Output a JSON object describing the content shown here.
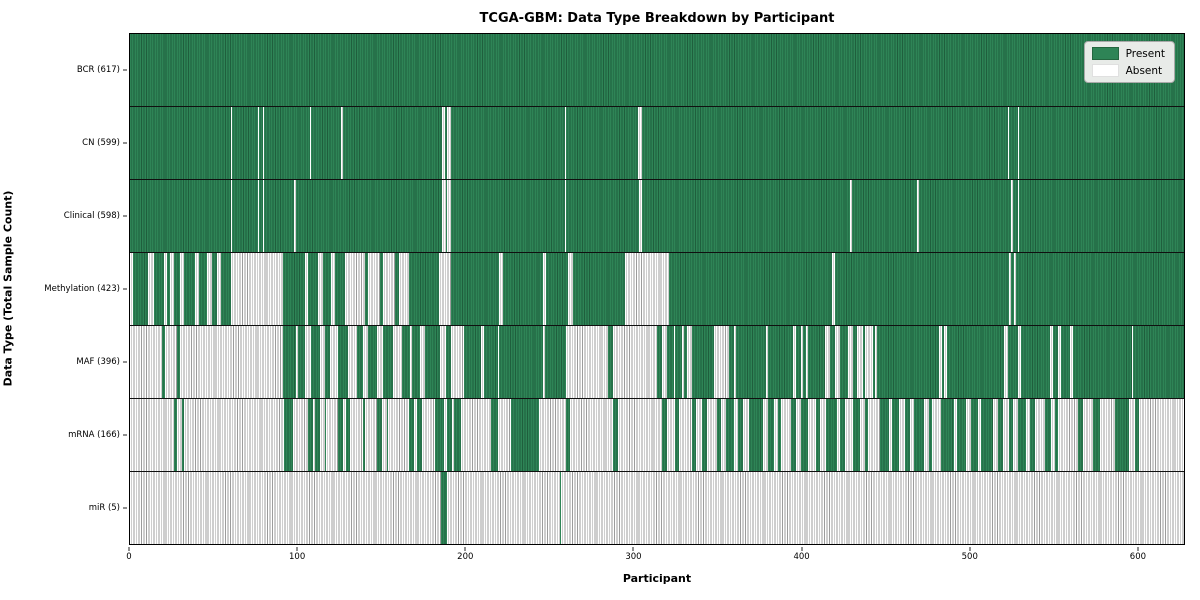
{
  "chart": {
    "title": "TCGA-GBM: Data Type Breakdown by Participant",
    "xlabel": "Participant",
    "ylabel": "Data Type (Total Sample Count)",
    "legend": [
      "Present",
      "Absent"
    ]
  },
  "chart_data": {
    "type": "heatmap",
    "title": "TCGA-GBM: Data Type Breakdown by Participant",
    "xlabel": "Participant",
    "ylabel": "Data Type (Total Sample Count)",
    "legend": [
      {
        "label": "Present",
        "color": "#2e8456"
      },
      {
        "label": "Absent",
        "color": "#ffffff"
      }
    ],
    "x_range": [
      0,
      628
    ],
    "x_ticks": [
      0,
      100,
      200,
      300,
      400,
      500,
      600
    ],
    "grid": false,
    "legend_position": "upper right",
    "value_encoding": "runs are run-length pairs [state,count] per participant column; 1=present, 0=absent",
    "rows": [
      {
        "label": "BCR (617)",
        "name": "BCR",
        "total": 617,
        "runs": [
          [
            1,
            628
          ]
        ]
      },
      {
        "label": "CN (599)",
        "name": "CN",
        "total": 599,
        "runs": [
          [
            1,
            60
          ],
          [
            0,
            1
          ],
          [
            1,
            15
          ],
          [
            0,
            1
          ],
          [
            1,
            2
          ],
          [
            0,
            1
          ],
          [
            1,
            27
          ],
          [
            0,
            1
          ],
          [
            1,
            18
          ],
          [
            0,
            1
          ],
          [
            1,
            59
          ],
          [
            0,
            2
          ],
          [
            1,
            1
          ],
          [
            0,
            2
          ],
          [
            1,
            68
          ],
          [
            0,
            1
          ],
          [
            1,
            43
          ],
          [
            0,
            2
          ],
          [
            1,
            218
          ],
          [
            0,
            1
          ],
          [
            1,
            5
          ],
          [
            0,
            1
          ],
          [
            1,
            98
          ]
        ]
      },
      {
        "label": "Clinical (598)",
        "name": "Clinical",
        "total": 598,
        "runs": [
          [
            1,
            60
          ],
          [
            0,
            1
          ],
          [
            1,
            15
          ],
          [
            0,
            1
          ],
          [
            1,
            2
          ],
          [
            0,
            1
          ],
          [
            1,
            18
          ],
          [
            0,
            1
          ],
          [
            1,
            87
          ],
          [
            0,
            2
          ],
          [
            1,
            1
          ],
          [
            0,
            2
          ],
          [
            1,
            68
          ],
          [
            0,
            1
          ],
          [
            1,
            43
          ],
          [
            0,
            2
          ],
          [
            1,
            124
          ],
          [
            0,
            1
          ],
          [
            1,
            39
          ],
          [
            0,
            1
          ],
          [
            1,
            55
          ],
          [
            0,
            1
          ],
          [
            1,
            3
          ],
          [
            0,
            1
          ],
          [
            1,
            98
          ]
        ]
      },
      {
        "label": "Methylation (423)",
        "name": "Methylation",
        "total": 423,
        "runs": [
          [
            0,
            2
          ],
          [
            1,
            9
          ],
          [
            0,
            3
          ],
          [
            1,
            6
          ],
          [
            0,
            2
          ],
          [
            1,
            2
          ],
          [
            0,
            2
          ],
          [
            1,
            4
          ],
          [
            0,
            2
          ],
          [
            1,
            7
          ],
          [
            0,
            2
          ],
          [
            1,
            5
          ],
          [
            0,
            3
          ],
          [
            1,
            3
          ],
          [
            0,
            2
          ],
          [
            1,
            6
          ],
          [
            0,
            31
          ],
          [
            1,
            13
          ],
          [
            0,
            2
          ],
          [
            1,
            6
          ],
          [
            0,
            3
          ],
          [
            1,
            5
          ],
          [
            0,
            2
          ],
          [
            1,
            6
          ],
          [
            0,
            12
          ],
          [
            1,
            2
          ],
          [
            0,
            7
          ],
          [
            1,
            2
          ],
          [
            0,
            7
          ],
          [
            1,
            2
          ],
          [
            0,
            6
          ],
          [
            1,
            18
          ],
          [
            0,
            7
          ],
          [
            1,
            29
          ],
          [
            0,
            2
          ],
          [
            1,
            24
          ],
          [
            0,
            2
          ],
          [
            1,
            13
          ],
          [
            0,
            3
          ],
          [
            1,
            31
          ],
          [
            0,
            26
          ],
          [
            1,
            97
          ],
          [
            0,
            2
          ],
          [
            1,
            104
          ],
          [
            0,
            1
          ],
          [
            1,
            2
          ],
          [
            0,
            1
          ],
          [
            1,
            100
          ]
        ]
      },
      {
        "label": "MAF (396)",
        "name": "MAF",
        "total": 396,
        "runs": [
          [
            0,
            19
          ],
          [
            1,
            2
          ],
          [
            0,
            7
          ],
          [
            1,
            2
          ],
          [
            0,
            61
          ],
          [
            1,
            8
          ],
          [
            0,
            1
          ],
          [
            1,
            4
          ],
          [
            0,
            4
          ],
          [
            1,
            5
          ],
          [
            0,
            3
          ],
          [
            1,
            3
          ],
          [
            0,
            5
          ],
          [
            1,
            6
          ],
          [
            0,
            5
          ],
          [
            1,
            4
          ],
          [
            0,
            3
          ],
          [
            1,
            5
          ],
          [
            0,
            4
          ],
          [
            1,
            6
          ],
          [
            0,
            5
          ],
          [
            1,
            5
          ],
          [
            0,
            1
          ],
          [
            1,
            5
          ],
          [
            0,
            3
          ],
          [
            1,
            9
          ],
          [
            0,
            3
          ],
          [
            1,
            3
          ],
          [
            0,
            8
          ],
          [
            1,
            10
          ],
          [
            0,
            2
          ],
          [
            1,
            8
          ],
          [
            0,
            1
          ],
          [
            1,
            26
          ],
          [
            0,
            1
          ],
          [
            1,
            13
          ],
          [
            0,
            25
          ],
          [
            1,
            3
          ],
          [
            0,
            26
          ],
          [
            1,
            3
          ],
          [
            0,
            3
          ],
          [
            1,
            4
          ],
          [
            0,
            1
          ],
          [
            1,
            4
          ],
          [
            0,
            1
          ],
          [
            1,
            2
          ],
          [
            0,
            3
          ],
          [
            1,
            13
          ],
          [
            0,
            9
          ],
          [
            1,
            3
          ],
          [
            0,
            1
          ],
          [
            1,
            18
          ],
          [
            0,
            1
          ],
          [
            1,
            15
          ],
          [
            0,
            2
          ],
          [
            1,
            3
          ],
          [
            0,
            1
          ],
          [
            1,
            2
          ],
          [
            0,
            1
          ],
          [
            1,
            10
          ],
          [
            0,
            3
          ],
          [
            1,
            3
          ],
          [
            0,
            3
          ],
          [
            1,
            5
          ],
          [
            0,
            3
          ],
          [
            1,
            2
          ],
          [
            0,
            4
          ],
          [
            1,
            1
          ],
          [
            0,
            5
          ],
          [
            1,
            1
          ],
          [
            0,
            1
          ],
          [
            1,
            37
          ],
          [
            0,
            2
          ],
          [
            1,
            1
          ],
          [
            0,
            2
          ],
          [
            1,
            34
          ],
          [
            0,
            2
          ],
          [
            1,
            6
          ],
          [
            0,
            2
          ],
          [
            1,
            17
          ],
          [
            0,
            2
          ],
          [
            1,
            3
          ],
          [
            0,
            2
          ],
          [
            1,
            5
          ],
          [
            0,
            2
          ],
          [
            1,
            35
          ],
          [
            0,
            1
          ],
          [
            1,
            30
          ]
        ]
      },
      {
        "label": "mRNA (166)",
        "name": "mRNA",
        "total": 166,
        "runs": [
          [
            0,
            26
          ],
          [
            1,
            2
          ],
          [
            0,
            3
          ],
          [
            1,
            1
          ],
          [
            0,
            60
          ],
          [
            1,
            5
          ],
          [
            0,
            9
          ],
          [
            1,
            3
          ],
          [
            0,
            1
          ],
          [
            1,
            3
          ],
          [
            0,
            3
          ],
          [
            1,
            1
          ],
          [
            0,
            7
          ],
          [
            1,
            3
          ],
          [
            0,
            2
          ],
          [
            1,
            2
          ],
          [
            0,
            8
          ],
          [
            1,
            1
          ],
          [
            0,
            7
          ],
          [
            1,
            3
          ],
          [
            0,
            3
          ],
          [
            1,
            1
          ],
          [
            0,
            12
          ],
          [
            1,
            3
          ],
          [
            0,
            2
          ],
          [
            1,
            3
          ],
          [
            0,
            8
          ],
          [
            1,
            5
          ],
          [
            0,
            2
          ],
          [
            1,
            3
          ],
          [
            0,
            1
          ],
          [
            1,
            4
          ],
          [
            0,
            18
          ],
          [
            1,
            4
          ],
          [
            0,
            8
          ],
          [
            1,
            17
          ],
          [
            0,
            16
          ],
          [
            1,
            2
          ],
          [
            0,
            26
          ],
          [
            1,
            3
          ],
          [
            0,
            26
          ],
          [
            1,
            3
          ],
          [
            0,
            5
          ],
          [
            1,
            2
          ],
          [
            0,
            8
          ],
          [
            1,
            2
          ],
          [
            0,
            4
          ],
          [
            1,
            3
          ],
          [
            0,
            6
          ],
          [
            1,
            2
          ],
          [
            0,
            3
          ],
          [
            1,
            5
          ],
          [
            0,
            2
          ],
          [
            1,
            3
          ],
          [
            0,
            4
          ],
          [
            1,
            8
          ],
          [
            0,
            3
          ],
          [
            1,
            4
          ],
          [
            0,
            2
          ],
          [
            1,
            2
          ],
          [
            0,
            6
          ],
          [
            1,
            3
          ],
          [
            0,
            3
          ],
          [
            1,
            4
          ],
          [
            0,
            5
          ],
          [
            1,
            2
          ],
          [
            0,
            4
          ],
          [
            1,
            6
          ],
          [
            0,
            2
          ],
          [
            1,
            3
          ],
          [
            0,
            5
          ],
          [
            1,
            4
          ],
          [
            0,
            3
          ],
          [
            1,
            2
          ],
          [
            0,
            7
          ],
          [
            1,
            5
          ],
          [
            0,
            2
          ],
          [
            1,
            4
          ],
          [
            0,
            4
          ],
          [
            1,
            3
          ],
          [
            0,
            2
          ],
          [
            1,
            6
          ],
          [
            0,
            3
          ],
          [
            1,
            2
          ],
          [
            0,
            5
          ],
          [
            1,
            8
          ],
          [
            0,
            2
          ],
          [
            1,
            5
          ],
          [
            0,
            3
          ],
          [
            1,
            4
          ],
          [
            0,
            2
          ],
          [
            1,
            7
          ],
          [
            0,
            3
          ],
          [
            1,
            3
          ],
          [
            0,
            4
          ],
          [
            1,
            2
          ],
          [
            0,
            3
          ],
          [
            1,
            5
          ],
          [
            0,
            2
          ],
          [
            1,
            3
          ],
          [
            0,
            6
          ],
          [
            1,
            4
          ],
          [
            0,
            2
          ],
          [
            1,
            2
          ],
          [
            0,
            12
          ],
          [
            1,
            3
          ],
          [
            0,
            6
          ],
          [
            1,
            4
          ],
          [
            0,
            9
          ],
          [
            1,
            8
          ],
          [
            0,
            4
          ],
          [
            1,
            2
          ],
          [
            0,
            27
          ]
        ]
      },
      {
        "label": "miR (5)",
        "name": "miR",
        "total": 5,
        "runs": [
          [
            0,
            185
          ],
          [
            1,
            4
          ],
          [
            0,
            67
          ],
          [
            1,
            1
          ],
          [
            0,
            371
          ]
        ]
      }
    ],
    "colors": {
      "present": "#2e8456",
      "absent": "#ffffff",
      "cell_edge_green": "#1f5f3d",
      "cell_edge_gray": "#9c9c9c"
    }
  }
}
